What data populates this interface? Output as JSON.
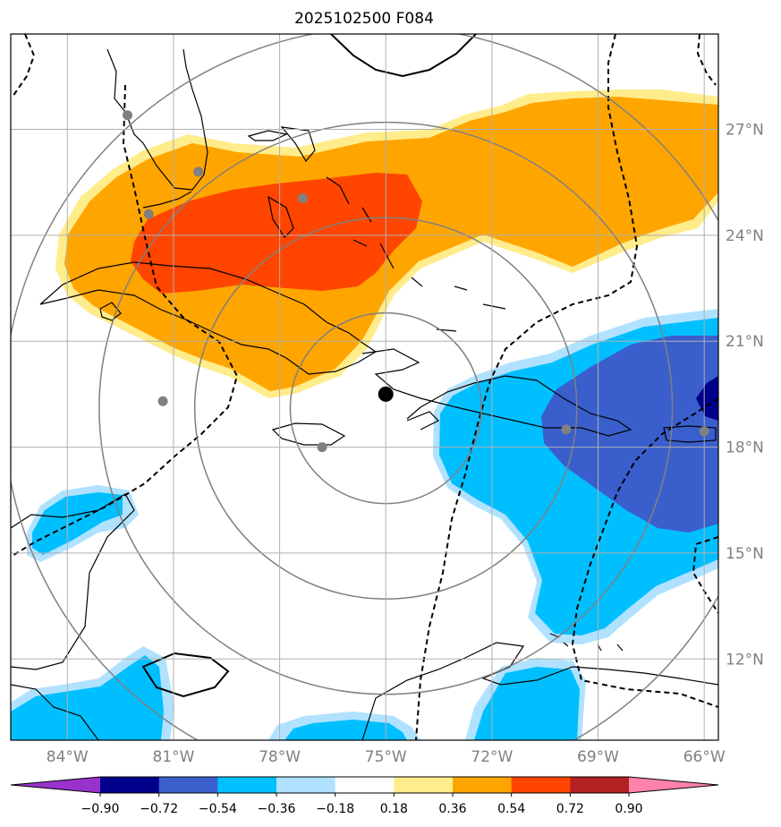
{
  "title": "2025102500 F084",
  "map": {
    "lon_range": [
      -85.6,
      -65.6
    ],
    "lat_range": [
      9.7,
      29.7
    ],
    "lon_ticks": [
      {
        "value": -84,
        "label": "84°W"
      },
      {
        "value": -81,
        "label": "81°W"
      },
      {
        "value": -78,
        "label": "78°W"
      },
      {
        "value": -75,
        "label": "75°W"
      },
      {
        "value": -72,
        "label": "72°W"
      },
      {
        "value": -69,
        "label": "69°W"
      },
      {
        "value": -66,
        "label": "66°W"
      }
    ],
    "lat_ticks": [
      {
        "value": 27,
        "label": "27°N"
      },
      {
        "value": 24,
        "label": "24°N"
      },
      {
        "value": 21,
        "label": "21°N"
      },
      {
        "value": 18,
        "label": "18°N"
      },
      {
        "value": 15,
        "label": "15°N"
      },
      {
        "value": 12,
        "label": "12°N"
      }
    ],
    "center_marker": {
      "lon": -75.0,
      "lat": 19.5
    },
    "range_ring_radii_deg": [
      2.7,
      5.4,
      8.1,
      10.8
    ],
    "stations": [
      {
        "lon": -82.3,
        "lat": 27.4
      },
      {
        "lon": -80.3,
        "lat": 25.8
      },
      {
        "lon": -81.7,
        "lat": 24.6
      },
      {
        "lon": -77.35,
        "lat": 25.05
      },
      {
        "lon": -81.3,
        "lat": 19.3
      },
      {
        "lon": -76.8,
        "lat": 18.0
      },
      {
        "lon": -69.9,
        "lat": 18.5
      },
      {
        "lon": -66.0,
        "lat": 18.45
      }
    ]
  },
  "colorbar": {
    "levels": [
      -0.9,
      -0.72,
      -0.54,
      -0.36,
      -0.18,
      0.18,
      0.36,
      0.54,
      0.72,
      0.9
    ],
    "tick_labels": [
      "−0.90",
      "−0.72",
      "−0.54",
      "−0.36",
      "−0.18",
      "0.18",
      "0.36",
      "0.54",
      "0.72",
      "0.90"
    ],
    "colors": [
      "#9932cc",
      "#00008b",
      "#3a5fcd",
      "#00bfff",
      "#b0e2ff",
      "#ffffff",
      "#ffec8b",
      "#ffa500",
      "#ff4500",
      "#b22222",
      "#ff82ab"
    ]
  },
  "colors": {
    "grid": "#b0b0b0",
    "rings": "#808080",
    "stations": "#808080",
    "coast": "#000000"
  }
}
